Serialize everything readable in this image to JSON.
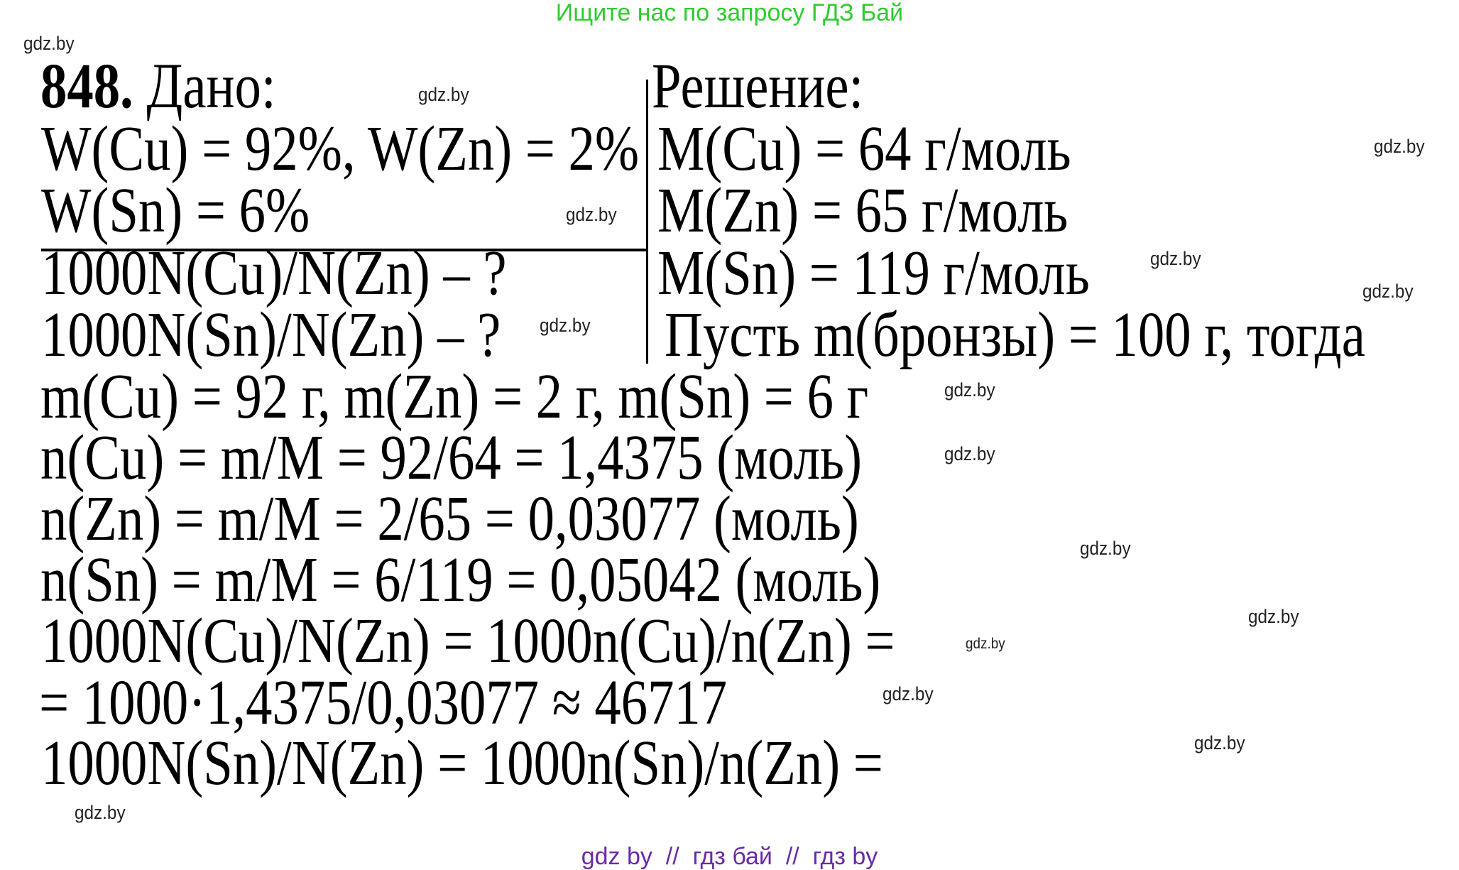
{
  "header_banner": "Ищите нас по запросу ГДЗ Бай",
  "footer_banner": "gdz by  //  гдз бай  //  гдз by",
  "watermark": "gdz.by",
  "colors": {
    "header": "#2ecc2e",
    "footer": "#6a2aa8"
  },
  "problem": {
    "number": "848.",
    "given_label": "Дано:",
    "solution_label": "Решение:",
    "given": [
      "W(Cu) = 92%, W(Zn) = 2%",
      "W(Sn) = 6%"
    ],
    "find": [
      "1000N(Cu)/N(Zn) – ?",
      "1000N(Sn)/N(Zn) – ?"
    ],
    "solution_right": [
      "M(Cu) = 64 г/моль",
      "M(Zn) = 65 г/моль",
      "M(Sn) = 119 г/моль",
      "Пусть m(бронзы) = 100 г, тогда"
    ],
    "solution": [
      "m(Cu) = 92 г, m(Zn) = 2 г, m(Sn) = 6 г",
      "n(Cu) = m/M = 92/64 = 1,4375 (моль)",
      "n(Zn) = m/M = 2/65 = 0,03077 (моль)",
      "n(Sn) = m/M = 6/119 = 0,05042 (моль)",
      "1000N(Cu)/N(Zn) = 1000n(Cu)/n(Zn) =",
      "= 1000·1,4375/0,03077 ≈ 46717",
      "1000N(Sn)/N(Zn) = 1000n(Sn)/n(Zn) ="
    ]
  }
}
